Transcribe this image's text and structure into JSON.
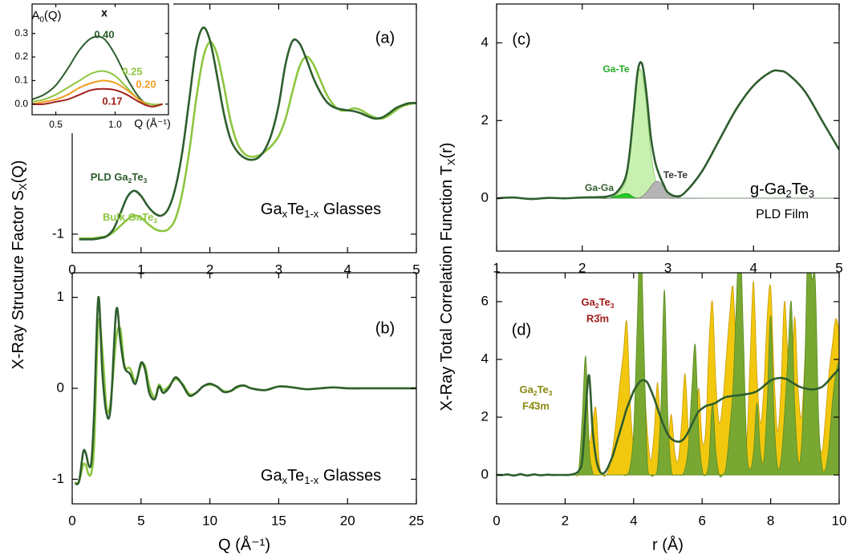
{
  "chart_data": [
    {
      "type": "line",
      "xlim": [
        0,
        5
      ],
      "ylim": [
        -1.18,
        1.23
      ],
      "xticks": [
        0,
        1,
        2,
        3,
        4,
        5
      ],
      "yticks": [
        -1
      ],
      "ylabel": [
        "X-Ray Structure Factor S",
        "X",
        "(Q)"
      ],
      "annotations": [
        "(a)",
        [
          "Ga",
          "x",
          "Te",
          "1-x",
          " Glasses"
        ]
      ],
      "x": [
        0.1,
        0.2,
        0.3,
        0.4,
        0.5,
        0.6,
        0.7,
        0.8,
        0.9,
        1.0,
        1.1,
        1.2,
        1.3,
        1.4,
        1.5,
        1.6,
        1.7,
        1.8,
        1.9,
        2.0,
        2.1,
        2.2,
        2.3,
        2.4,
        2.5,
        2.6,
        2.7,
        2.8,
        2.9,
        3.0,
        3.1,
        3.2,
        3.3,
        3.4,
        3.5,
        3.6,
        3.7,
        3.8,
        3.9,
        4.0,
        4.1,
        4.2,
        4.3,
        4.4,
        4.5,
        4.6,
        4.7,
        4.8,
        4.9,
        5.0
      ],
      "series": [
        {
          "name": [
            "Bulk GaTe",
            "3"
          ],
          "color": "#8cc63f",
          "values": [
            -1.04,
            -1.04,
            -1.04,
            -1.03,
            -1.02,
            -0.98,
            -0.92,
            -0.86,
            -0.82,
            -0.84,
            -0.9,
            -0.95,
            -0.97,
            -0.95,
            -0.85,
            -0.6,
            -0.2,
            0.3,
            0.7,
            0.86,
            0.75,
            0.45,
            0.1,
            -0.12,
            -0.22,
            -0.25,
            -0.24,
            -0.2,
            -0.14,
            -0.05,
            0.12,
            0.38,
            0.62,
            0.72,
            0.65,
            0.5,
            0.35,
            0.25,
            0.2,
            0.2,
            0.22,
            0.2,
            0.16,
            0.13,
            0.12,
            0.15,
            0.2,
            0.24,
            0.26,
            0.27
          ]
        },
        {
          "name": [
            "PLD Ga",
            "2",
            "Te",
            "3"
          ],
          "color": "#2e5e2e",
          "values": [
            -1.05,
            -1.05,
            -1.05,
            -1.04,
            -1.02,
            -0.95,
            -0.8,
            -0.64,
            -0.58,
            -0.63,
            -0.73,
            -0.8,
            -0.82,
            -0.75,
            -0.55,
            -0.2,
            0.3,
            0.8,
            1.0,
            0.88,
            0.55,
            0.18,
            -0.08,
            -0.2,
            -0.26,
            -0.28,
            -0.26,
            -0.18,
            -0.02,
            0.25,
            0.65,
            0.87,
            0.85,
            0.7,
            0.52,
            0.38,
            0.28,
            0.23,
            0.21,
            0.2,
            0.19,
            0.17,
            0.14,
            0.12,
            0.13,
            0.17,
            0.22,
            0.25,
            0.27,
            0.27
          ]
        }
      ]
    },
    {
      "type": "line",
      "xlim": [
        0.3,
        1.45
      ],
      "ylim": [
        -0.045,
        0.425
      ],
      "xticks": [
        0.5,
        {
          "value": 1,
          "label": "1.0"
        }
      ],
      "yticks": [
        {
          "value": 0,
          "label": "0.0"
        },
        0.1,
        0.2,
        0.3
      ],
      "title": [
        "A",
        "0",
        "(Q)"
      ],
      "legend_title": "x",
      "xlabel": "Q (Å⁻¹)",
      "x": [
        0.3,
        0.4,
        0.5,
        0.6,
        0.7,
        0.8,
        0.9,
        1.0,
        1.1,
        1.2,
        1.3,
        1.4
      ],
      "series": [
        {
          "name": "0.40",
          "color": "#2e5e2e",
          "values": [
            0.02,
            0.04,
            0.08,
            0.15,
            0.23,
            0.28,
            0.28,
            0.21,
            0.11,
            0.03,
            -0.01,
            0.0
          ]
        },
        {
          "name": "0.25",
          "color": "#8cc63f",
          "values": [
            0.01,
            0.02,
            0.04,
            0.07,
            0.1,
            0.13,
            0.14,
            0.12,
            0.07,
            0.02,
            0.0,
            0.0
          ]
        },
        {
          "name": "0.20",
          "color": "#f39c1f",
          "values": [
            0.0,
            0.01,
            0.02,
            0.04,
            0.07,
            0.09,
            0.1,
            0.09,
            0.06,
            0.02,
            -0.01,
            0.0
          ]
        },
        {
          "name": "0.17",
          "color": "#a0201c",
          "values": [
            0.0,
            0.0,
            0.01,
            0.02,
            0.04,
            0.06,
            0.065,
            0.06,
            0.04,
            0.01,
            -0.01,
            0.0
          ]
        }
      ]
    },
    {
      "type": "line",
      "xlim": [
        0,
        25
      ],
      "ylim": [
        -1.27,
        1.27
      ],
      "xticks": [
        0,
        5,
        10,
        15,
        20,
        25
      ],
      "yticks": [
        -1,
        0,
        1
      ],
      "xlabel": "Q (Å⁻¹)",
      "annotations": [
        "(b)",
        [
          "Ga",
          "x",
          "Te",
          "1-x",
          " Glasses"
        ]
      ],
      "x": [
        0.2,
        0.5,
        0.8,
        1.0,
        1.2,
        1.4,
        1.6,
        1.9,
        2.2,
        2.5,
        2.8,
        3.2,
        3.5,
        3.8,
        4.2,
        4.6,
        5.0,
        5.3,
        5.6,
        6.0,
        6.3,
        6.6,
        7.0,
        7.5,
        8.0,
        8.5,
        9.0,
        9.5,
        10.0,
        10.5,
        11.0,
        11.5,
        12.0,
        12.5,
        13,
        14,
        15,
        16,
        17,
        18,
        19,
        20,
        21,
        22,
        23,
        24,
        25
      ],
      "series": [
        {
          "color": "#8cc63f",
          "values": [
            -1.04,
            -1.02,
            -0.84,
            -0.85,
            -0.95,
            -0.92,
            -0.6,
            0.72,
            0.4,
            -0.22,
            -0.14,
            0.55,
            0.65,
            0.25,
            0.22,
            0.08,
            0.25,
            0.24,
            0.02,
            -0.1,
            0.04,
            -0.02,
            0.02,
            0.1,
            0.05,
            -0.06,
            -0.05,
            0.02,
            0.04,
            0.02,
            -0.03,
            -0.03,
            0.01,
            0.03,
            0.0,
            -0.02,
            0.02,
            0.01,
            -0.01,
            0,
            0.01,
            0,
            0,
            0,
            0,
            0,
            0
          ]
        },
        {
          "color": "#2e5e2e",
          "values": [
            -1.05,
            -1.02,
            -0.7,
            -0.72,
            -0.85,
            -0.8,
            -0.25,
            1.0,
            0.15,
            -0.28,
            -0.2,
            0.86,
            0.52,
            0.23,
            0.16,
            0.05,
            0.28,
            0.2,
            -0.05,
            -0.12,
            0.02,
            -0.05,
            0.0,
            0.12,
            0.04,
            -0.08,
            -0.05,
            0.02,
            0.05,
            0.02,
            -0.04,
            -0.03,
            0.02,
            0.03,
            0.0,
            -0.02,
            0.02,
            0.01,
            -0.01,
            0.0,
            0.01,
            0,
            0,
            0,
            0,
            0,
            0
          ]
        }
      ]
    },
    {
      "type": "line",
      "xlim": [
        1,
        5
      ],
      "ylim": [
        -1.36,
        5.0
      ],
      "xticks": [
        1,
        2,
        3,
        4,
        5
      ],
      "yticks": [
        0,
        2,
        4
      ],
      "ylabel": [
        "X-Ray Total Correlation Function T",
        "X",
        "(r)"
      ],
      "annotations": [
        "(c)",
        [
          "g-Ga",
          "2",
          "Te",
          "3"
        ],
        "PLD Film"
      ],
      "x": [
        1.0,
        1.2,
        1.4,
        1.6,
        1.8,
        2.0,
        2.2,
        2.3,
        2.4,
        2.5,
        2.55,
        2.6,
        2.65,
        2.7,
        2.75,
        2.8,
        2.85,
        2.9,
        2.95,
        3.0,
        3.1,
        3.2,
        3.4,
        3.6,
        3.8,
        4.0,
        4.2,
        4.3,
        4.4,
        4.6,
        4.8,
        5.0
      ],
      "series": [
        {
          "name": "Ga-Te",
          "fill": true,
          "color": "#c8f0b0",
          "edge_color": "#7cc25a",
          "label_color": "#22aa22",
          "values": [
            0,
            0,
            0,
            0,
            0,
            0,
            0,
            0,
            0.1,
            0.4,
            1.0,
            2.1,
            3.2,
            3.2,
            2.4,
            1.2,
            0.5,
            0.18,
            0.05,
            0,
            0,
            0,
            0,
            0,
            0,
            0,
            0,
            0,
            0,
            0,
            0,
            0
          ]
        },
        {
          "name": "Ga-Ga",
          "fill": true,
          "color": "#22cc22",
          "edge_color": "#119911",
          "label_color": "#2e5e2e",
          "values": [
            0,
            0,
            0,
            0,
            0,
            0,
            0,
            0,
            0.06,
            0.12,
            0.1,
            0.03,
            0,
            0,
            0,
            0,
            0,
            0,
            0,
            0,
            0,
            0,
            0,
            0,
            0,
            0,
            0,
            0,
            0,
            0,
            0,
            0
          ]
        },
        {
          "name": "Te-Te",
          "fill": true,
          "color": "#b4b4b4",
          "edge_color": "#808080",
          "label_color": "#333333",
          "values": [
            0,
            0,
            0,
            0,
            0,
            0,
            0,
            0,
            0,
            0,
            0,
            0,
            0,
            0.05,
            0.15,
            0.3,
            0.42,
            0.42,
            0.3,
            0.15,
            0.03,
            0,
            0,
            0,
            0,
            0,
            0,
            0,
            0,
            0,
            0,
            0
          ]
        },
        {
          "color": "#2e5e2e",
          "values": [
            0.0,
            0.02,
            -0.02,
            0.01,
            0.0,
            0.02,
            0.03,
            0.05,
            0.15,
            0.5,
            1.1,
            2.2,
            3.3,
            3.45,
            2.7,
            1.6,
            0.95,
            0.6,
            0.35,
            0.15,
            0.05,
            0.15,
            0.7,
            1.5,
            2.3,
            2.9,
            3.25,
            3.28,
            3.2,
            2.75,
            2.0,
            1.25
          ]
        }
      ]
    },
    {
      "type": "line",
      "xlim": [
        0,
        10
      ],
      "ylim": [
        -1,
        7
      ],
      "xticks": [
        0,
        2,
        4,
        6,
        8,
        10
      ],
      "yticks": [
        0,
        2,
        4,
        6
      ],
      "xlabel": "r (Å)",
      "annotations": [
        "(d)"
      ],
      "x": [
        0,
        0.1,
        0.2,
        0.3,
        0.4,
        0.5,
        0.6,
        0.7,
        0.8,
        0.9,
        1.0,
        1.1,
        1.2,
        1.3,
        1.4,
        1.5,
        1.6,
        1.7,
        1.8,
        1.9,
        2.0,
        2.1,
        2.2,
        2.3,
        2.4,
        2.5,
        2.6,
        2.7,
        2.8,
        2.9,
        3.0,
        3.1,
        3.2,
        3.3,
        3.4,
        3.5,
        3.6,
        3.7,
        3.8,
        3.9,
        4.0,
        4.1,
        4.2,
        4.3,
        4.4,
        4.5,
        4.6,
        4.7,
        4.8,
        4.9,
        5.0,
        5.1,
        5.2,
        5.3,
        5.4,
        5.5,
        5.6,
        5.7,
        5.8,
        5.9,
        6.0,
        6.1,
        6.2,
        6.3,
        6.4,
        6.5,
        6.6,
        6.7,
        6.8,
        6.9,
        7.0,
        7.1,
        7.2,
        7.3,
        7.4,
        7.5,
        7.6,
        7.7,
        7.8,
        7.9,
        8.0,
        8.1,
        8.2,
        8.3,
        8.4,
        8.5,
        8.6,
        8.7,
        8.8,
        8.9,
        9.0,
        9.1,
        9.2,
        9.3,
        9.4,
        9.5,
        9.6,
        9.7,
        9.8,
        9.9,
        10.0
      ],
      "series": [
        {
          "name": "R3̄m",
          "formula": [
            "Ga",
            "2",
            "Te",
            "3"
          ],
          "fill": true,
          "color": "#f2c80f",
          "edge_color": "#c89a00",
          "label_color": "#a01c1c",
          "values": [
            0,
            0,
            0,
            0,
            0,
            0,
            0,
            0,
            0,
            0,
            0,
            0,
            0,
            0,
            0,
            0,
            0,
            0,
            0,
            0,
            0,
            0,
            0,
            0,
            0.1,
            1.5,
            4.0,
            1.2,
            1.8,
            2.3,
            0.4,
            0,
            0,
            0.3,
            1.0,
            2.0,
            3.2,
            4.2,
            5.3,
            2.5,
            1.0,
            1.8,
            2.8,
            3.2,
            1.5,
            0.5,
            1.5,
            3.2,
            1.2,
            0.4,
            1.0,
            2.1,
            0.8,
            0.5,
            1.8,
            3.5,
            1.5,
            0.5,
            1.5,
            3.0,
            1.2,
            1.5,
            4.5,
            6.0,
            3.2,
            1.8,
            2.5,
            4.0,
            5.5,
            6.5,
            4.0,
            1.5,
            2.2,
            1.2,
            4.0,
            6.7,
            3.5,
            1.8,
            3.0,
            5.5,
            6.5,
            3.5,
            1.5,
            3.0,
            6.0,
            4.2,
            3.0,
            5.5,
            3.0,
            2.0,
            4.0,
            6.2,
            6.8,
            4.0,
            1.5,
            0.8,
            2.0,
            3.5,
            4.5,
            5.4,
            5.0
          ]
        },
        {
          "name": "F4̄3m",
          "formula": [
            "Ga",
            "2",
            "Te",
            "3"
          ],
          "fill": true,
          "color": "#78a832",
          "edge_color": "#5a8a20",
          "label_color": "#8a8a10",
          "values": [
            0,
            0,
            0,
            0,
            0,
            0,
            0,
            0,
            0,
            0,
            0,
            0,
            0,
            0,
            0,
            0,
            0,
            0,
            0,
            0,
            0,
            0,
            0,
            0,
            0.2,
            2.0,
            4.1,
            1.0,
            0.1,
            0,
            0,
            0,
            0,
            0,
            0,
            0,
            0,
            0,
            0,
            0.3,
            1.5,
            5.0,
            8.5,
            4.5,
            0.5,
            0,
            0,
            0.3,
            2.5,
            6.4,
            2.0,
            0.2,
            0,
            0,
            0,
            0.2,
            1.0,
            3.0,
            4.5,
            1.5,
            0.2,
            0,
            0.5,
            2.5,
            0.8,
            0,
            0,
            0.3,
            1.5,
            3.0,
            6.0,
            8.5,
            5.0,
            1.0,
            0.2,
            0.8,
            2.5,
            0.8,
            0.5,
            2.5,
            5.5,
            2.0,
            0.3,
            0.5,
            2.0,
            4.0,
            6.0,
            2.5,
            0.5,
            1.0,
            4.0,
            8.5,
            6.8,
            6.8,
            2.0,
            0.3,
            0.2,
            1.0,
            2.5,
            3.5,
            4.0
          ]
        },
        {
          "color": "#2e5e2e",
          "values": [
            0,
            0,
            0,
            0.02,
            0,
            -0.02,
            0,
            0.03,
            0,
            -0.02,
            0,
            0.02,
            0,
            -0.01,
            0,
            0.01,
            0,
            0,
            0,
            0,
            0,
            0,
            0.02,
            0.05,
            0.15,
            0.5,
            2.2,
            3.45,
            1.6,
            0.6,
            0.15,
            0.05,
            0.15,
            0.4,
            0.7,
            1.1,
            1.5,
            1.9,
            2.3,
            2.6,
            2.9,
            3.1,
            3.25,
            3.28,
            3.2,
            2.95,
            2.65,
            2.3,
            1.95,
            1.65,
            1.4,
            1.25,
            1.18,
            1.15,
            1.18,
            1.3,
            1.5,
            1.75,
            2.0,
            2.2,
            2.3,
            2.38,
            2.42,
            2.45,
            2.5,
            2.58,
            2.65,
            2.7,
            2.72,
            2.74,
            2.75,
            2.76,
            2.78,
            2.8,
            2.82,
            2.85,
            2.9,
            2.98,
            3.08,
            3.18,
            3.27,
            3.32,
            3.35,
            3.36,
            3.34,
            3.3,
            3.22,
            3.15,
            3.08,
            3.03,
            3.0,
            2.97,
            2.96,
            2.97,
            3.0,
            3.05,
            3.15,
            3.28,
            3.42,
            3.55,
            3.68
          ]
        }
      ]
    }
  ]
}
